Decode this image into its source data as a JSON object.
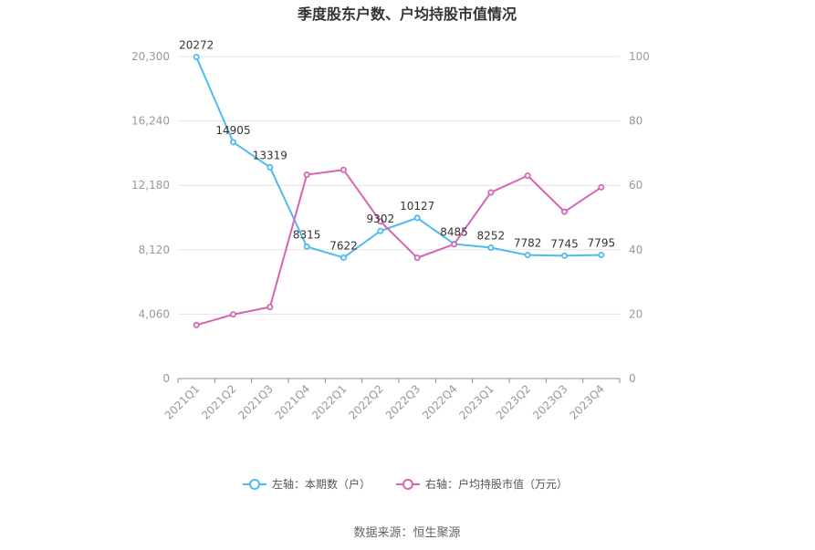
{
  "chart_data": {
    "type": "line",
    "title": "季度股东户数、户均持股市值情况",
    "categories": [
      "2021Q1",
      "2021Q2",
      "2021Q3",
      "2021Q4",
      "2022Q1",
      "2022Q2",
      "2022Q3",
      "2022Q4",
      "2023Q1",
      "2023Q2",
      "2023Q3",
      "2023Q4"
    ],
    "series": [
      {
        "name": "左轴：本期数（户）",
        "axis": "left",
        "color": "#4dbbf0",
        "values": [
          20272,
          14905,
          13319,
          8315,
          7622,
          9302,
          10127,
          8485,
          8252,
          7782,
          7745,
          7795
        ],
        "labels": [
          "20272",
          "14905",
          "13319",
          "8315",
          "7622",
          "9302",
          "10127",
          "8485",
          "8252",
          "7782",
          "7745",
          "7795"
        ]
      },
      {
        "name": "右轴：户均持股市值（万元）",
        "axis": "right",
        "color": "#d566b5",
        "values": [
          16.6,
          19.9,
          22.2,
          63.3,
          64.8,
          48.8,
          37.5,
          41.7,
          57.8,
          63.0,
          51.8,
          59.4
        ]
      }
    ],
    "left_axis": {
      "ylim": [
        0,
        20300
      ],
      "ticks": [
        "0",
        "4,060",
        "8,120",
        "12,180",
        "16,240",
        "20,300"
      ],
      "tick_values": [
        0,
        4060,
        8120,
        12180,
        16240,
        20300
      ]
    },
    "right_axis": {
      "ylim": [
        0,
        100
      ],
      "ticks": [
        "0",
        "20",
        "40",
        "60",
        "80",
        "100"
      ],
      "tick_values": [
        0,
        20,
        40,
        60,
        80,
        100
      ]
    },
    "grid": true,
    "legend_position": "bottom",
    "source": "数据来源：恒生聚源"
  }
}
